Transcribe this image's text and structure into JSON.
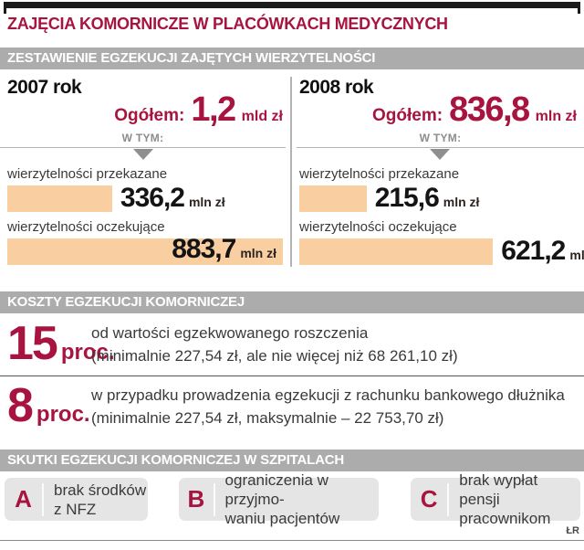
{
  "colors": {
    "accent_red": "#a81440",
    "bar_peach": "#f9cfa2",
    "band_gray": "#acacac",
    "box_gray": "#e5e5e5"
  },
  "header": {
    "title": "ZAJĘCIA KOMORNICZE W PLACÓWKACH MEDYCZNYCH",
    "band": "ZESTAWIENIE EGZEKUCJI ZAJĘTYCH WIERZYTELNOŚCI"
  },
  "comparison": {
    "columns": [
      {
        "year": "2007 rok",
        "total_prefix": "Ogółem:",
        "total_value": "1,2",
        "total_unit": "mld zł",
        "wtym": "W TYM:",
        "bars": [
          {
            "label": "wierzytelności przekazane",
            "value": "336,2",
            "unit": "mln zł"
          },
          {
            "label": "wierzytelności oczekujące",
            "value": "883,7",
            "unit": "mln zł"
          }
        ]
      },
      {
        "year": "2008 rok",
        "total_prefix": "Ogółem:",
        "total_value": "836,8",
        "total_unit": "mln zł",
        "wtym": "W TYM:",
        "bars": [
          {
            "label": "wierzytelności przekazane",
            "value": "215,6",
            "unit": "mln zł"
          },
          {
            "label": "wierzytelności oczekujące",
            "value": "621,2",
            "unit": "mln zł"
          }
        ]
      }
    ]
  },
  "costs": {
    "band": "KOSZTY EGZEKUCJI KOMORNICZEJ",
    "items": [
      {
        "value": "15",
        "unit": "proc.",
        "line1": "od wartości egzekwowanego roszczenia",
        "line2": "(minimalnie 227,54 zł, ale nie więcej niż 68 261,10 zł)"
      },
      {
        "value": "8",
        "unit": "proc.",
        "line1": "w przypadku prowadzenia egzekucji z rachunku bankowego dłużnika",
        "line2": "(minimalnie 227,54 zł, maksymalnie – 22 753,70 zł)"
      }
    ]
  },
  "effects": {
    "band": "SKUTKI EGZEKUCJI KOMORNICZEJ W SZPITALACH",
    "items": [
      {
        "letter": "A",
        "line1": "brak środków",
        "line2": "z NFZ"
      },
      {
        "letter": "B",
        "line1": "ograniczenia w przyjmo-",
        "line2": "waniu pacjentów"
      },
      {
        "letter": "C",
        "line1": "brak wypłat pensji",
        "line2": "pracownikom"
      }
    ]
  },
  "credit": "ŁR",
  "chart_data": [
    {
      "type": "bar",
      "title": "2007 rok",
      "subtitle": "Ogółem: 1,2 mld zł",
      "categories": [
        "wierzytelności przekazane",
        "wierzytelności oczekujące"
      ],
      "values": [
        336.2,
        883.7
      ],
      "unit": "mln zł",
      "orientation": "horizontal"
    },
    {
      "type": "bar",
      "title": "2008 rok",
      "subtitle": "Ogółem: 836,8 mln zł",
      "categories": [
        "wierzytelności przekazane",
        "wierzytelności oczekujące"
      ],
      "values": [
        215.6,
        621.2
      ],
      "unit": "mln zł",
      "orientation": "horizontal"
    }
  ]
}
